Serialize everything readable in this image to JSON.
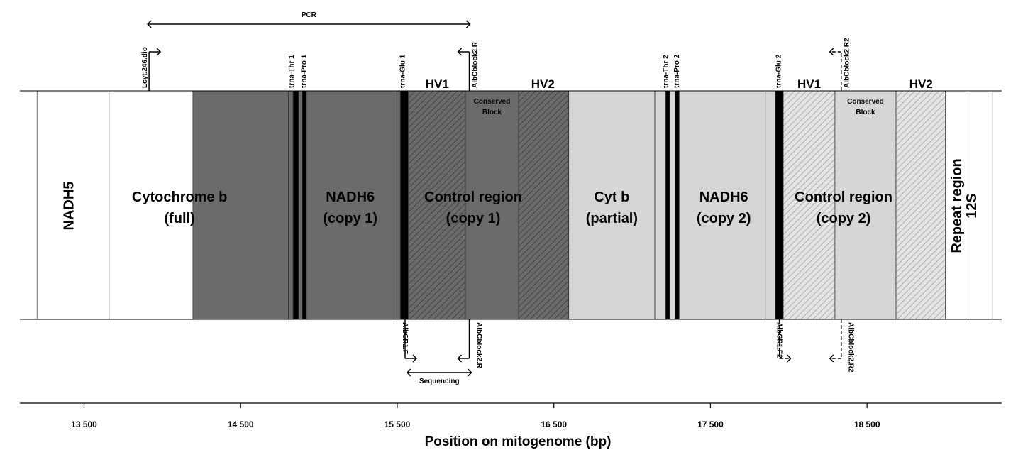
{
  "colors": {
    "dark_block": "#6b6b6b",
    "light_block": "#d6d6d6",
    "trna_black": "#000000",
    "outline": "#333333",
    "white": "#ffffff"
  },
  "diagram": {
    "segments": [
      {
        "id": "nadh5",
        "label": "NADH5",
        "start": 13200,
        "end": 13660,
        "fill": "white",
        "vertical": true
      },
      {
        "id": "cytb-full",
        "label": "Cytochrome b\n(full)",
        "start": 13660,
        "end": 14195,
        "fill": "white"
      },
      {
        "id": "cytb-full-dark",
        "label": "",
        "start": 14195,
        "end": 14805,
        "fill": "dark"
      },
      {
        "id": "trna-thr-1",
        "label": "",
        "start": 14805,
        "end": 14835,
        "fill": "dark-thin"
      },
      {
        "id": "trna-blk-1",
        "label": "",
        "start": 14835,
        "end": 14870,
        "fill": "black"
      },
      {
        "id": "trna-pro-1-gap",
        "label": "",
        "start": 14870,
        "end": 14893,
        "fill": "dark"
      },
      {
        "id": "trna-blk-2",
        "label": "",
        "start": 14893,
        "end": 14920,
        "fill": "black"
      },
      {
        "id": "nadh6-1",
        "label": "NADH6\n(copy 1)",
        "start": 14920,
        "end": 15480,
        "fill": "dark"
      },
      {
        "id": "trna-glu-1-gap",
        "label": "",
        "start": 15480,
        "end": 15520,
        "fill": "dark-thin"
      },
      {
        "id": "trna-glu-1",
        "label": "",
        "start": 15520,
        "end": 15570,
        "fill": "black"
      },
      {
        "id": "cr1-hv1",
        "label": "",
        "start": 15570,
        "end": 15935,
        "fill": "dark-hatch"
      },
      {
        "id": "cr1-cons",
        "label": "",
        "start": 15935,
        "end": 16275,
        "fill": "dark"
      },
      {
        "id": "cr1-hv2",
        "label": "",
        "start": 16275,
        "end": 16595,
        "fill": "dark-hatch"
      },
      {
        "id": "cytb-partial",
        "label": "Cyt b\n(partial)",
        "start": 16595,
        "end": 17145,
        "fill": "light"
      },
      {
        "id": "trna-thr-2",
        "label": "",
        "start": 17145,
        "end": 17215,
        "fill": "light-thin"
      },
      {
        "id": "trna-blk-3",
        "label": "",
        "start": 17215,
        "end": 17240,
        "fill": "black"
      },
      {
        "id": "trna-pro-2-gap",
        "label": "",
        "start": 17240,
        "end": 17275,
        "fill": "light"
      },
      {
        "id": "trna-blk-4",
        "label": "",
        "start": 17275,
        "end": 17300,
        "fill": "black"
      },
      {
        "id": "nadh6-2",
        "label": "NADH6\n(copy 2)",
        "start": 17300,
        "end": 17850,
        "fill": "light"
      },
      {
        "id": "trna-glu-2-gap",
        "label": "",
        "start": 17850,
        "end": 17915,
        "fill": "light-thin"
      },
      {
        "id": "trna-glu-2",
        "label": "",
        "start": 17915,
        "end": 17965,
        "fill": "black"
      },
      {
        "id": "cr2-hv1",
        "label": "",
        "start": 17965,
        "end": 18295,
        "fill": "light-hatch"
      },
      {
        "id": "cr2-cons",
        "label": "",
        "start": 18295,
        "end": 18685,
        "fill": "light"
      },
      {
        "id": "cr2-hv2",
        "label": "",
        "start": 18685,
        "end": 19000,
        "fill": "light-hatch"
      },
      {
        "id": "repeat",
        "label": "",
        "start": 19000,
        "end": 19145,
        "fill": "white"
      },
      {
        "id": "12s",
        "label": "",
        "start": 19145,
        "end": 19300,
        "fill": "white"
      }
    ],
    "region_labels": [
      {
        "text": "Cytochrome b",
        "line2": "(full)",
        "pos": 14110
      },
      {
        "text": "NADH6",
        "line2": "(copy 1)",
        "pos": 15200
      },
      {
        "text": "Control  region",
        "line2": "(copy 1)",
        "pos": 15985
      },
      {
        "text": "Cyt b",
        "line2": "(partial)",
        "pos": 16870
      },
      {
        "text": "NADH6",
        "line2": "(copy 2)",
        "pos": 17585
      },
      {
        "text": "Control  region",
        "line2": "(copy 2)",
        "pos": 18350
      }
    ],
    "vertical_labels": [
      {
        "text": "NADH5",
        "pos": 13400
      },
      {
        "text": "Repeat region",
        "pos": 19070
      },
      {
        "text": "12S",
        "pos": 19165
      }
    ],
    "hv_labels": [
      {
        "text": "HV1",
        "pos": 15755
      },
      {
        "text": "HV2",
        "pos": 16430
      },
      {
        "text": "HV1",
        "pos": 18130
      },
      {
        "text": "HV2",
        "pos": 18845
      }
    ],
    "conserved_labels": [
      {
        "line1": "Conserved",
        "line2": "Block",
        "pos": 16105
      },
      {
        "line1": "Conserved",
        "line2": "Block",
        "pos": 18490
      }
    ],
    "trna_labels_top": [
      {
        "text": "trna-Thr 1",
        "pos": 14825
      },
      {
        "text": "trna-Pro 1",
        "pos": 14905
      },
      {
        "text": "trna-Glu 1",
        "pos": 15535
      },
      {
        "text": "trna-Thr 2",
        "pos": 17215
      },
      {
        "text": "trna-Pro 2",
        "pos": 17285
      },
      {
        "text": "trna-Glu 2",
        "pos": 17935
      }
    ],
    "primers_top": [
      {
        "text": "Lcyt.246.dio",
        "pos": 13915,
        "dir": "right",
        "dashed": false
      },
      {
        "text": "AlbCblock2.R",
        "pos": 15960,
        "dir": "left",
        "dashed": false
      },
      {
        "text": "AlbCblock2.R2",
        "pos": 18335,
        "dir": "left",
        "dashed": true
      }
    ],
    "primers_bottom": [
      {
        "text": "AlbCR1.F",
        "pos": 15550,
        "dir": "right",
        "dashed": false
      },
      {
        "text": "AlbCblock2.R",
        "pos": 15960,
        "dir": "left",
        "dashed": false
      },
      {
        "text": "AlbCR1.F2",
        "pos": 17940,
        "dir": "right",
        "dashed": true
      },
      {
        "text": "AlbCblock2.R2",
        "pos": 18335,
        "dir": "left",
        "dashed": true
      }
    ],
    "pcr_label": "PCR",
    "pcr_range": [
      13915,
      15960
    ],
    "sequencing_label": "Sequencing",
    "sequencing_range": [
      15550,
      15960
    ]
  },
  "axis": {
    "title": "Position on mitogenome (bp)",
    "min": 13090,
    "max": 19360,
    "ticks": [
      {
        "value": 13500,
        "label": "13 500"
      },
      {
        "value": 14500,
        "label": "14 500"
      },
      {
        "value": 15500,
        "label": "15 500"
      },
      {
        "value": 16500,
        "label": "16 500"
      },
      {
        "value": 17500,
        "label": "17 500"
      },
      {
        "value": 18500,
        "label": "18 500"
      }
    ]
  }
}
